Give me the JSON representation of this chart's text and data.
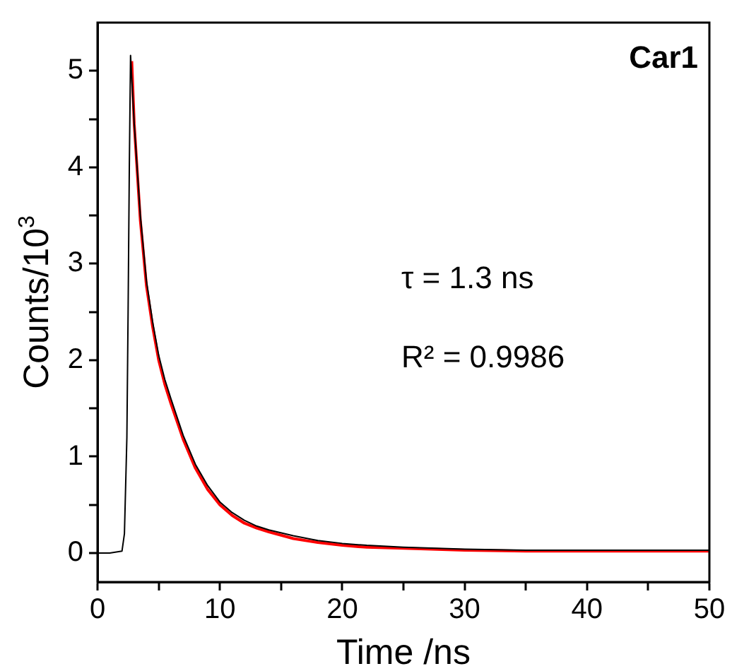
{
  "chart_data": {
    "type": "line",
    "xlabel": "Time /ns",
    "ylabel": "Counts/10$^{3}$",
    "xlim": [
      0,
      50
    ],
    "ylim": [
      -0.3,
      5.5
    ],
    "xticks": [
      0,
      {
        "value": 5,
        "label": null
      },
      10,
      {
        "value": 15,
        "label": null
      },
      20,
      {
        "value": 25,
        "label": null
      },
      30,
      {
        "value": 35,
        "label": null
      },
      40,
      {
        "value": 45,
        "label": null
      },
      50
    ],
    "yticks": [
      0,
      {
        "value": 0.5,
        "label": null
      },
      1,
      {
        "value": 1.5,
        "label": null
      },
      2,
      {
        "value": 2.5,
        "label": null
      },
      3,
      {
        "value": 3.5,
        "label": null
      },
      4,
      {
        "value": 4.5,
        "label": null
      },
      5
    ],
    "grid": false,
    "legend": false,
    "marker": "none",
    "line_style": "solid",
    "annotations": [
      "Car1",
      "τ = 1.3 ns",
      "R² = 0.9986"
    ],
    "series": [
      {
        "color": "#000000",
        "x": [
          0,
          1,
          2,
          2.2,
          2.4,
          2.5,
          2.6,
          2.7,
          3,
          3.5,
          4,
          4.5,
          5,
          5.5,
          6,
          7,
          8,
          9,
          10,
          11,
          12,
          13,
          14,
          16,
          18,
          20,
          22,
          25,
          30,
          35,
          40,
          45,
          50
        ],
        "values": [
          0,
          0,
          0.02,
          0.2,
          1.2,
          2.5,
          4,
          5.16,
          4.45,
          3.5,
          2.82,
          2.4,
          2.05,
          1.8,
          1.6,
          1.22,
          0.92,
          0.7,
          0.53,
          0.42,
          0.34,
          0.28,
          0.24,
          0.18,
          0.13,
          0.1,
          0.08,
          0.06,
          0.04,
          0.03,
          0.03,
          0.03,
          0.03
        ]
      },
      {
        "color": "#ff0000",
        "x": [
          2.8,
          3,
          3.5,
          4,
          4.5,
          5,
          5.5,
          6,
          7,
          8,
          9,
          10,
          11,
          12,
          13,
          14,
          16,
          18,
          20,
          22,
          25,
          30,
          35,
          40,
          45,
          50
        ],
        "values": [
          5.1,
          4.45,
          3.45,
          2.77,
          2.35,
          2,
          1.75,
          1.55,
          1.18,
          0.88,
          0.66,
          0.5,
          0.39,
          0.31,
          0.26,
          0.22,
          0.15,
          0.11,
          0.08,
          0.06,
          0.05,
          0.03,
          0.02,
          0.02,
          0.02,
          0.02
        ]
      }
    ]
  }
}
